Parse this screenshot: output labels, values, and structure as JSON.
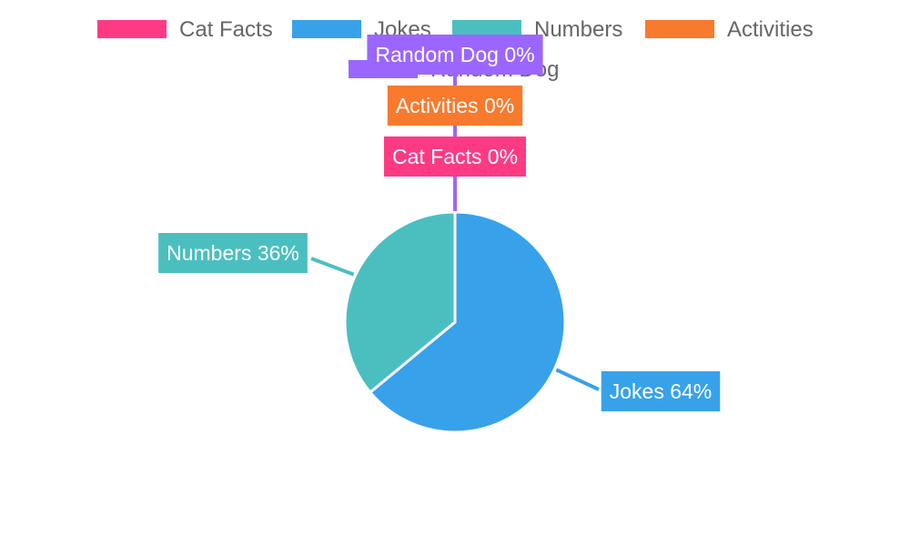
{
  "chart_data": {
    "type": "pie",
    "title": "",
    "legend_position": "top",
    "categories": [
      "Cat Facts",
      "Jokes",
      "Numbers",
      "Activities",
      "Random Dog"
    ],
    "values": [
      0,
      64,
      36,
      0,
      0
    ],
    "labels": [
      "Cat Facts 0%",
      "Jokes 64%",
      "Numbers 36%",
      "Activities 0%",
      "Random Dog 0%"
    ],
    "colors": [
      "#ff3a85",
      "#37a2ea",
      "#4bbfc0",
      "#f97a2c",
      "#9b66ff"
    ]
  }
}
